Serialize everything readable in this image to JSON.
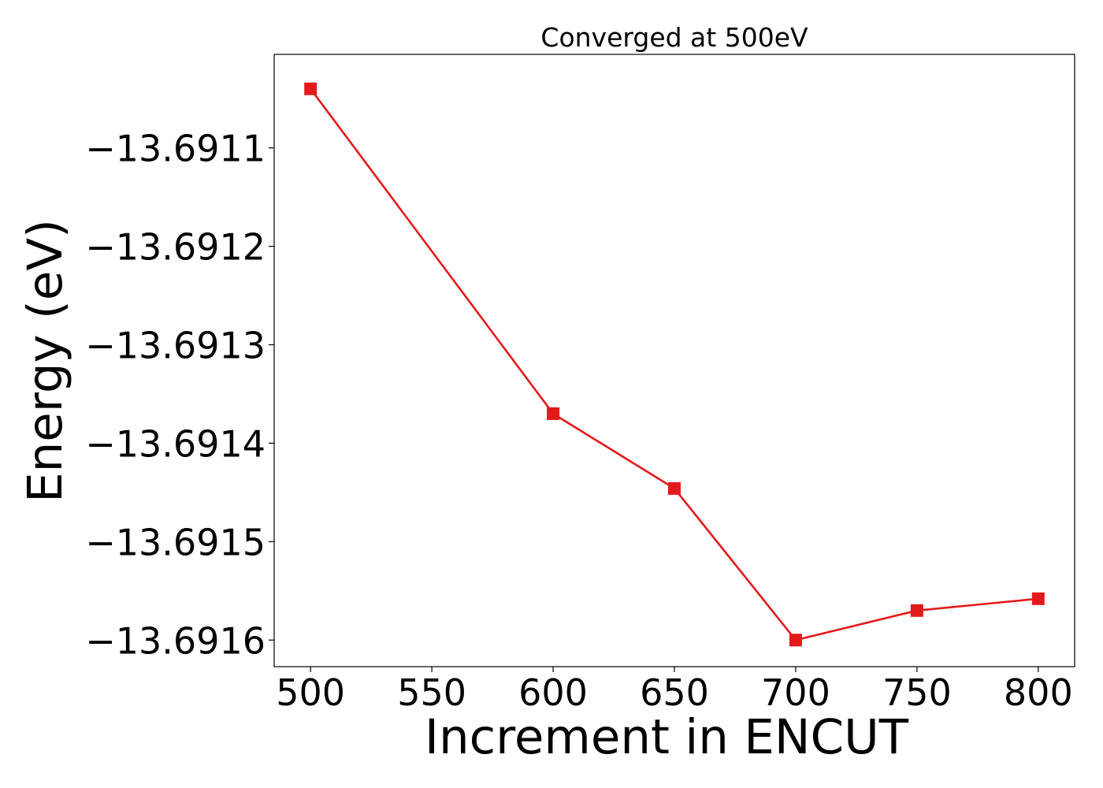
{
  "chart_data": {
    "type": "line",
    "title": "Converged at 500eV",
    "xlabel": "Increment in ENCUT",
    "ylabel": "Energy (eV)",
    "x": [
      500,
      600,
      650,
      700,
      750,
      800
    ],
    "series": [
      {
        "values": [
          -13.69104,
          -13.69137,
          -13.691446,
          -13.6916,
          -13.69157,
          -13.691558
        ],
        "color": "#e31a1c",
        "marker": "square"
      }
    ],
    "xticks": [
      500,
      550,
      600,
      650,
      700,
      750,
      800
    ],
    "xtick_labels": [
      "500",
      "550",
      "600",
      "650",
      "700",
      "750",
      "800"
    ],
    "yticks": [
      -13.6911,
      -13.6912,
      -13.6913,
      -13.6914,
      -13.6915,
      -13.6916
    ],
    "ytick_labels": [
      "−13.6911",
      "−13.6912",
      "−13.6913",
      "−13.6914",
      "−13.6915",
      "−13.6916"
    ],
    "xlim": [
      485,
      815
    ],
    "ylim": [
      -13.691627,
      -13.691005
    ],
    "grid": false,
    "legend": false
  }
}
